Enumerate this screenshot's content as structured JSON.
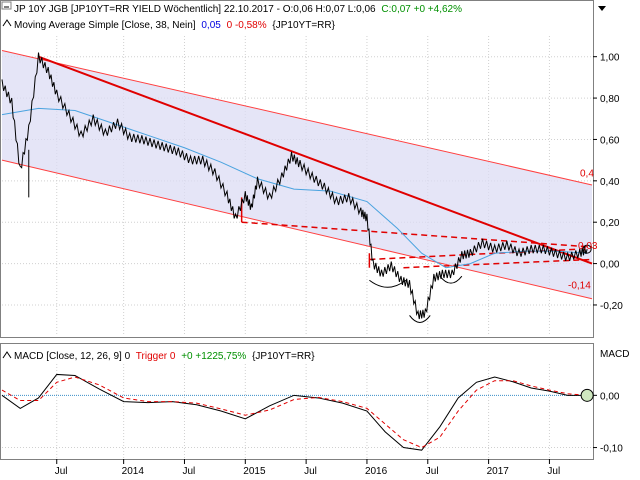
{
  "colors": {
    "price": "#000000",
    "ma": "#4aa3df",
    "trend": "#e00000",
    "channel_fill": "#dcdcf4",
    "channel_edge": "#ff4040",
    "macd_line": "#000000",
    "macd_trigger": "#e00000",
    "zero_line": "#3a8fc8",
    "grid": "#d0d0d0",
    "value_green": "#009000",
    "value_blue": "#0000e0",
    "value_red": "#e00000"
  },
  "legend": {
    "price_title": "JP 10Y JGB [JP10YT=RR YIELD Wöchentlich] 22.10.2017 - O:0,06 H:0,07 L:0,06",
    "price_close": "C:0,07 +0 +4,62%",
    "ma_title": "Moving Average Simple [Close, 38, Nein]",
    "ma_value": "0,05",
    "ma_change": "0 -0,58%",
    "ma_symbol": "{JP10YT=RR}",
    "macd_title": "MACD [Close, 12, 26, 9] 0",
    "macd_trigger_label": "Trigger 0",
    "macd_change": "+0 +1225,75%",
    "macd_symbol": "{JP10YT=RR}",
    "macd_axis_title": "MACD"
  },
  "chart_data": [
    {
      "type": "line",
      "title": "JP 10Y JGB [JP10YT=RR YIELD Wöchentlich] 22.10.2017",
      "y_ticks": [
        "1,00",
        "0,80",
        "0,60",
        "0,40",
        "0,20",
        "0,00",
        "-0,20"
      ],
      "ylim": [
        -0.35,
        1.1
      ],
      "x_ticks": [
        "Jul",
        "2014",
        "Jul",
        "2015",
        "Jul",
        "2016",
        "Jul",
        "2017",
        "Jul"
      ],
      "annotations": [
        "0,4",
        "0,03",
        "-0,14"
      ],
      "series": [
        {
          "name": "JP 10Y JGB",
          "x": [
            2013.0,
            2013.08,
            2013.15,
            2013.22,
            2013.3,
            2013.38,
            2013.45,
            2013.55,
            2013.65,
            2013.75,
            2013.85,
            2013.95,
            2014.05,
            2014.15,
            2014.25,
            2014.35,
            2014.45,
            2014.55,
            2014.65,
            2014.75,
            2014.85,
            2014.92,
            2015.0,
            2015.05,
            2015.1,
            2015.2,
            2015.3,
            2015.38,
            2015.45,
            2015.55,
            2015.65,
            2015.75,
            2015.85,
            2015.95,
            2016.0,
            2016.05,
            2016.12,
            2016.2,
            2016.28,
            2016.35,
            2016.42,
            2016.48,
            2016.55,
            2016.62,
            2016.7,
            2016.78,
            2016.85,
            2016.95,
            2017.05,
            2017.15,
            2017.25,
            2017.35,
            2017.45,
            2017.55,
            2017.65,
            2017.75,
            2017.81
          ],
          "values": [
            0.87,
            0.78,
            0.45,
            0.65,
            1.0,
            0.93,
            0.82,
            0.72,
            0.62,
            0.7,
            0.63,
            0.68,
            0.61,
            0.6,
            0.58,
            0.56,
            0.54,
            0.5,
            0.5,
            0.44,
            0.33,
            0.22,
            0.33,
            0.27,
            0.4,
            0.32,
            0.42,
            0.52,
            0.48,
            0.42,
            0.37,
            0.3,
            0.32,
            0.25,
            0.22,
            0.0,
            -0.05,
            -0.01,
            -0.08,
            -0.1,
            -0.25,
            -0.24,
            -0.07,
            -0.05,
            -0.05,
            0.04,
            0.05,
            0.1,
            0.07,
            0.09,
            0.05,
            0.07,
            0.07,
            0.05,
            0.03,
            0.05,
            0.07
          ]
        },
        {
          "name": "Moving Average Simple [Close, 38, Nein]",
          "x": [
            2013.0,
            2013.3,
            2013.6,
            2013.9,
            2014.2,
            2014.5,
            2014.8,
            2015.1,
            2015.4,
            2015.7,
            2016.0,
            2016.25,
            2016.45,
            2016.65,
            2016.85,
            2017.05,
            2017.3,
            2017.55,
            2017.81
          ],
          "values": [
            0.72,
            0.75,
            0.74,
            0.68,
            0.62,
            0.56,
            0.49,
            0.41,
            0.36,
            0.35,
            0.3,
            0.17,
            0.05,
            -0.02,
            0.0,
            0.05,
            0.06,
            0.06,
            0.05
          ]
        }
      ]
    },
    {
      "type": "line",
      "title": "MACD [Close, 12, 26, 9] 0",
      "y_ticks": [
        "0,00",
        "-0,10"
      ],
      "ylim": [
        -0.12,
        0.06
      ],
      "series": [
        {
          "name": "MACD",
          "x": [
            2013.0,
            2013.15,
            2013.3,
            2013.45,
            2013.6,
            2013.8,
            2014.0,
            2014.2,
            2014.4,
            2014.6,
            2014.8,
            2015.0,
            2015.2,
            2015.4,
            2015.6,
            2015.8,
            2016.0,
            2016.15,
            2016.3,
            2016.45,
            2016.6,
            2016.75,
            2016.9,
            2017.05,
            2017.2,
            2017.35,
            2017.5,
            2017.65,
            2017.81
          ],
          "values": [
            0.0,
            -0.025,
            -0.005,
            0.04,
            0.038,
            0.012,
            -0.012,
            -0.014,
            -0.012,
            -0.018,
            -0.03,
            -0.045,
            -0.02,
            0.0,
            -0.005,
            -0.015,
            -0.03,
            -0.07,
            -0.1,
            -0.105,
            -0.06,
            -0.005,
            0.025,
            0.035,
            0.026,
            0.014,
            0.008,
            0.0,
            0.0
          ]
        },
        {
          "name": "Trigger",
          "x": [
            2013.0,
            2013.15,
            2013.3,
            2013.45,
            2013.6,
            2013.8,
            2014.0,
            2014.2,
            2014.4,
            2014.6,
            2014.8,
            2015.0,
            2015.2,
            2015.4,
            2015.6,
            2015.8,
            2016.0,
            2016.15,
            2016.3,
            2016.45,
            2016.6,
            2016.75,
            2016.9,
            2017.05,
            2017.2,
            2017.35,
            2017.5,
            2017.65,
            2017.81
          ],
          "values": [
            0.01,
            -0.01,
            -0.01,
            0.025,
            0.035,
            0.02,
            -0.005,
            -0.012,
            -0.012,
            -0.015,
            -0.026,
            -0.038,
            -0.028,
            -0.008,
            -0.004,
            -0.012,
            -0.025,
            -0.055,
            -0.085,
            -0.1,
            -0.08,
            -0.03,
            0.01,
            0.028,
            0.028,
            0.018,
            0.01,
            0.003,
            0.0
          ]
        }
      ]
    }
  ]
}
